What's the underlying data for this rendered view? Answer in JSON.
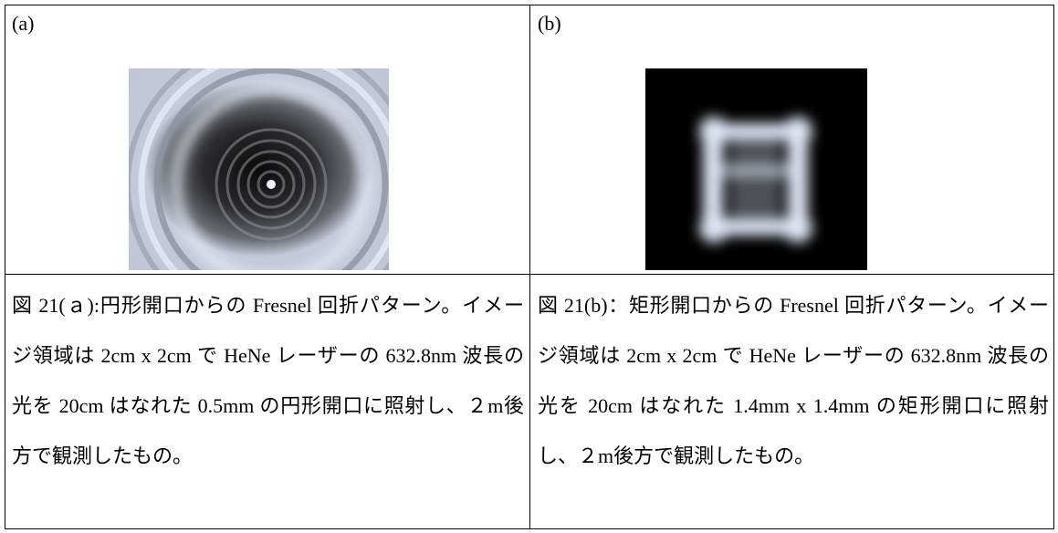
{
  "table": {
    "rows": [
      [
        {
          "label": "(a)"
        },
        {
          "label": "(b)"
        }
      ],
      [
        {
          "caption": "図 21(ａ):円形開口からの Fresnel 回折パターン。イメージ領域は 2cm x 2cm で HeNe レーザーの 632.8nm 波長の光を 20cm はなれた 0.5mm の円形開口に照射し、２m後方で観測したもの。"
        },
        {
          "caption": "図 21(b)：矩形開口からの Fresnel 回折パターン。イメージ領域は 2cm x 2cm で HeNe レーザーの 632.8nm 波長の光を 20cm はなれた 1.4mm x 1.4mm の矩形開口に照射し、２m後方で観測したもの。"
        }
      ]
    ]
  }
}
